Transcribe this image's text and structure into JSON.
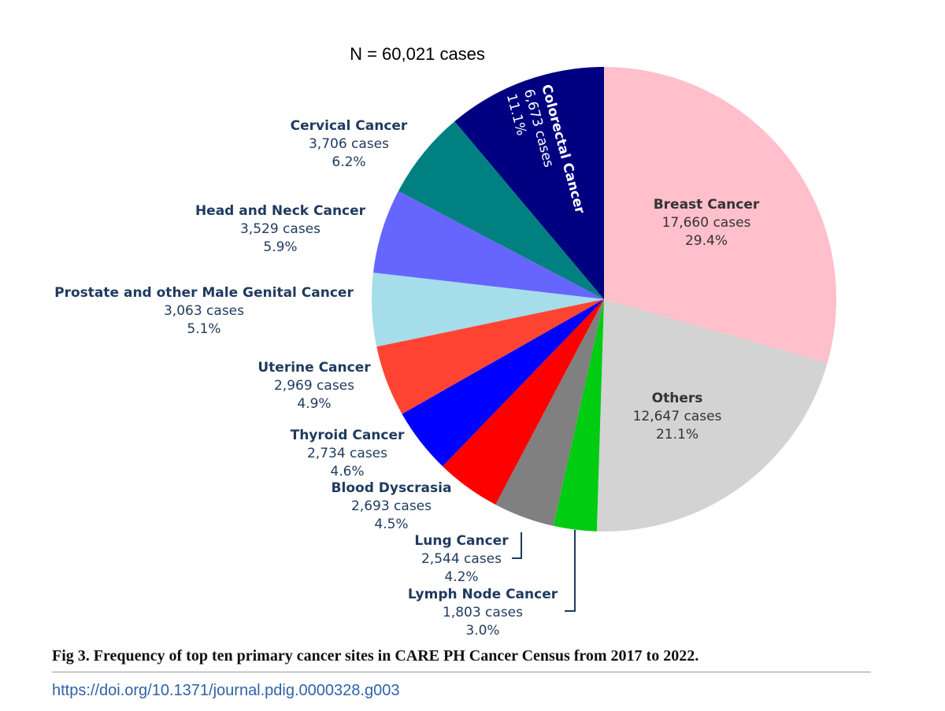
{
  "chart_data": {
    "type": "pie",
    "total_label": "N = 60,021 cases",
    "slices": [
      {
        "name": "Breast Cancer",
        "cases": 17660,
        "cases_label": "17,660 cases",
        "pct_label": "29.4%",
        "color": "#FFC0CB",
        "text_color": "#333333"
      },
      {
        "name": "Others",
        "cases": 12647,
        "cases_label": "12,647 cases",
        "pct_label": "21.1%",
        "color": "#D3D3D3",
        "text_color": "#333333"
      },
      {
        "name": "Lymph Node Cancer",
        "cases": 1803,
        "cases_label": "1,803 cases",
        "pct_label": "3.0%",
        "color": "#00CC11",
        "text_color": "#1F3A5F"
      },
      {
        "name": "Lung Cancer",
        "cases": 2544,
        "cases_label": "2,544 cases",
        "pct_label": "4.2%",
        "color": "#808080",
        "text_color": "#1F3A5F"
      },
      {
        "name": "Blood Dyscrasia",
        "cases": 2693,
        "cases_label": "2,693 cases",
        "pct_label": "4.5%",
        "color": "#FF0000",
        "text_color": "#1F3A5F"
      },
      {
        "name": "Thyroid Cancer",
        "cases": 2734,
        "cases_label": "2,734 cases",
        "pct_label": "4.6%",
        "color": "#0000FF",
        "text_color": "#1F3A5F"
      },
      {
        "name": "Uterine Cancer",
        "cases": 2969,
        "cases_label": "2,969 cases",
        "pct_label": "4.9%",
        "color": "#FF4433",
        "text_color": "#1F3A5F"
      },
      {
        "name": "Prostate and other Male Genital Cancer",
        "cases": 3063,
        "cases_label": "3,063 cases",
        "pct_label": "5.1%",
        "color": "#A5DDEA",
        "text_color": "#1F3A5F"
      },
      {
        "name": "Head and Neck Cancer",
        "cases": 3529,
        "cases_label": "3,529 cases",
        "pct_label": "5.9%",
        "color": "#6666FF",
        "text_color": "#1F3A5F"
      },
      {
        "name": "Cervical Cancer",
        "cases": 3706,
        "cases_label": "3,706 cases",
        "pct_label": "6.2%",
        "color": "#008080",
        "text_color": "#1F3A5F"
      },
      {
        "name": "Colorectal Cancer",
        "cases": 6673,
        "cases_label": "6,673 cases",
        "pct_label": "11.1%",
        "color": "#000080",
        "text_color": "#FFFFFF"
      }
    ]
  },
  "caption": "Fig 3. Frequency of top ten primary cancer sites in CARE PH Cancer Census from 2017 to 2022.",
  "doi": "https://doi.org/10.1371/journal.pdig.0000328.g003"
}
